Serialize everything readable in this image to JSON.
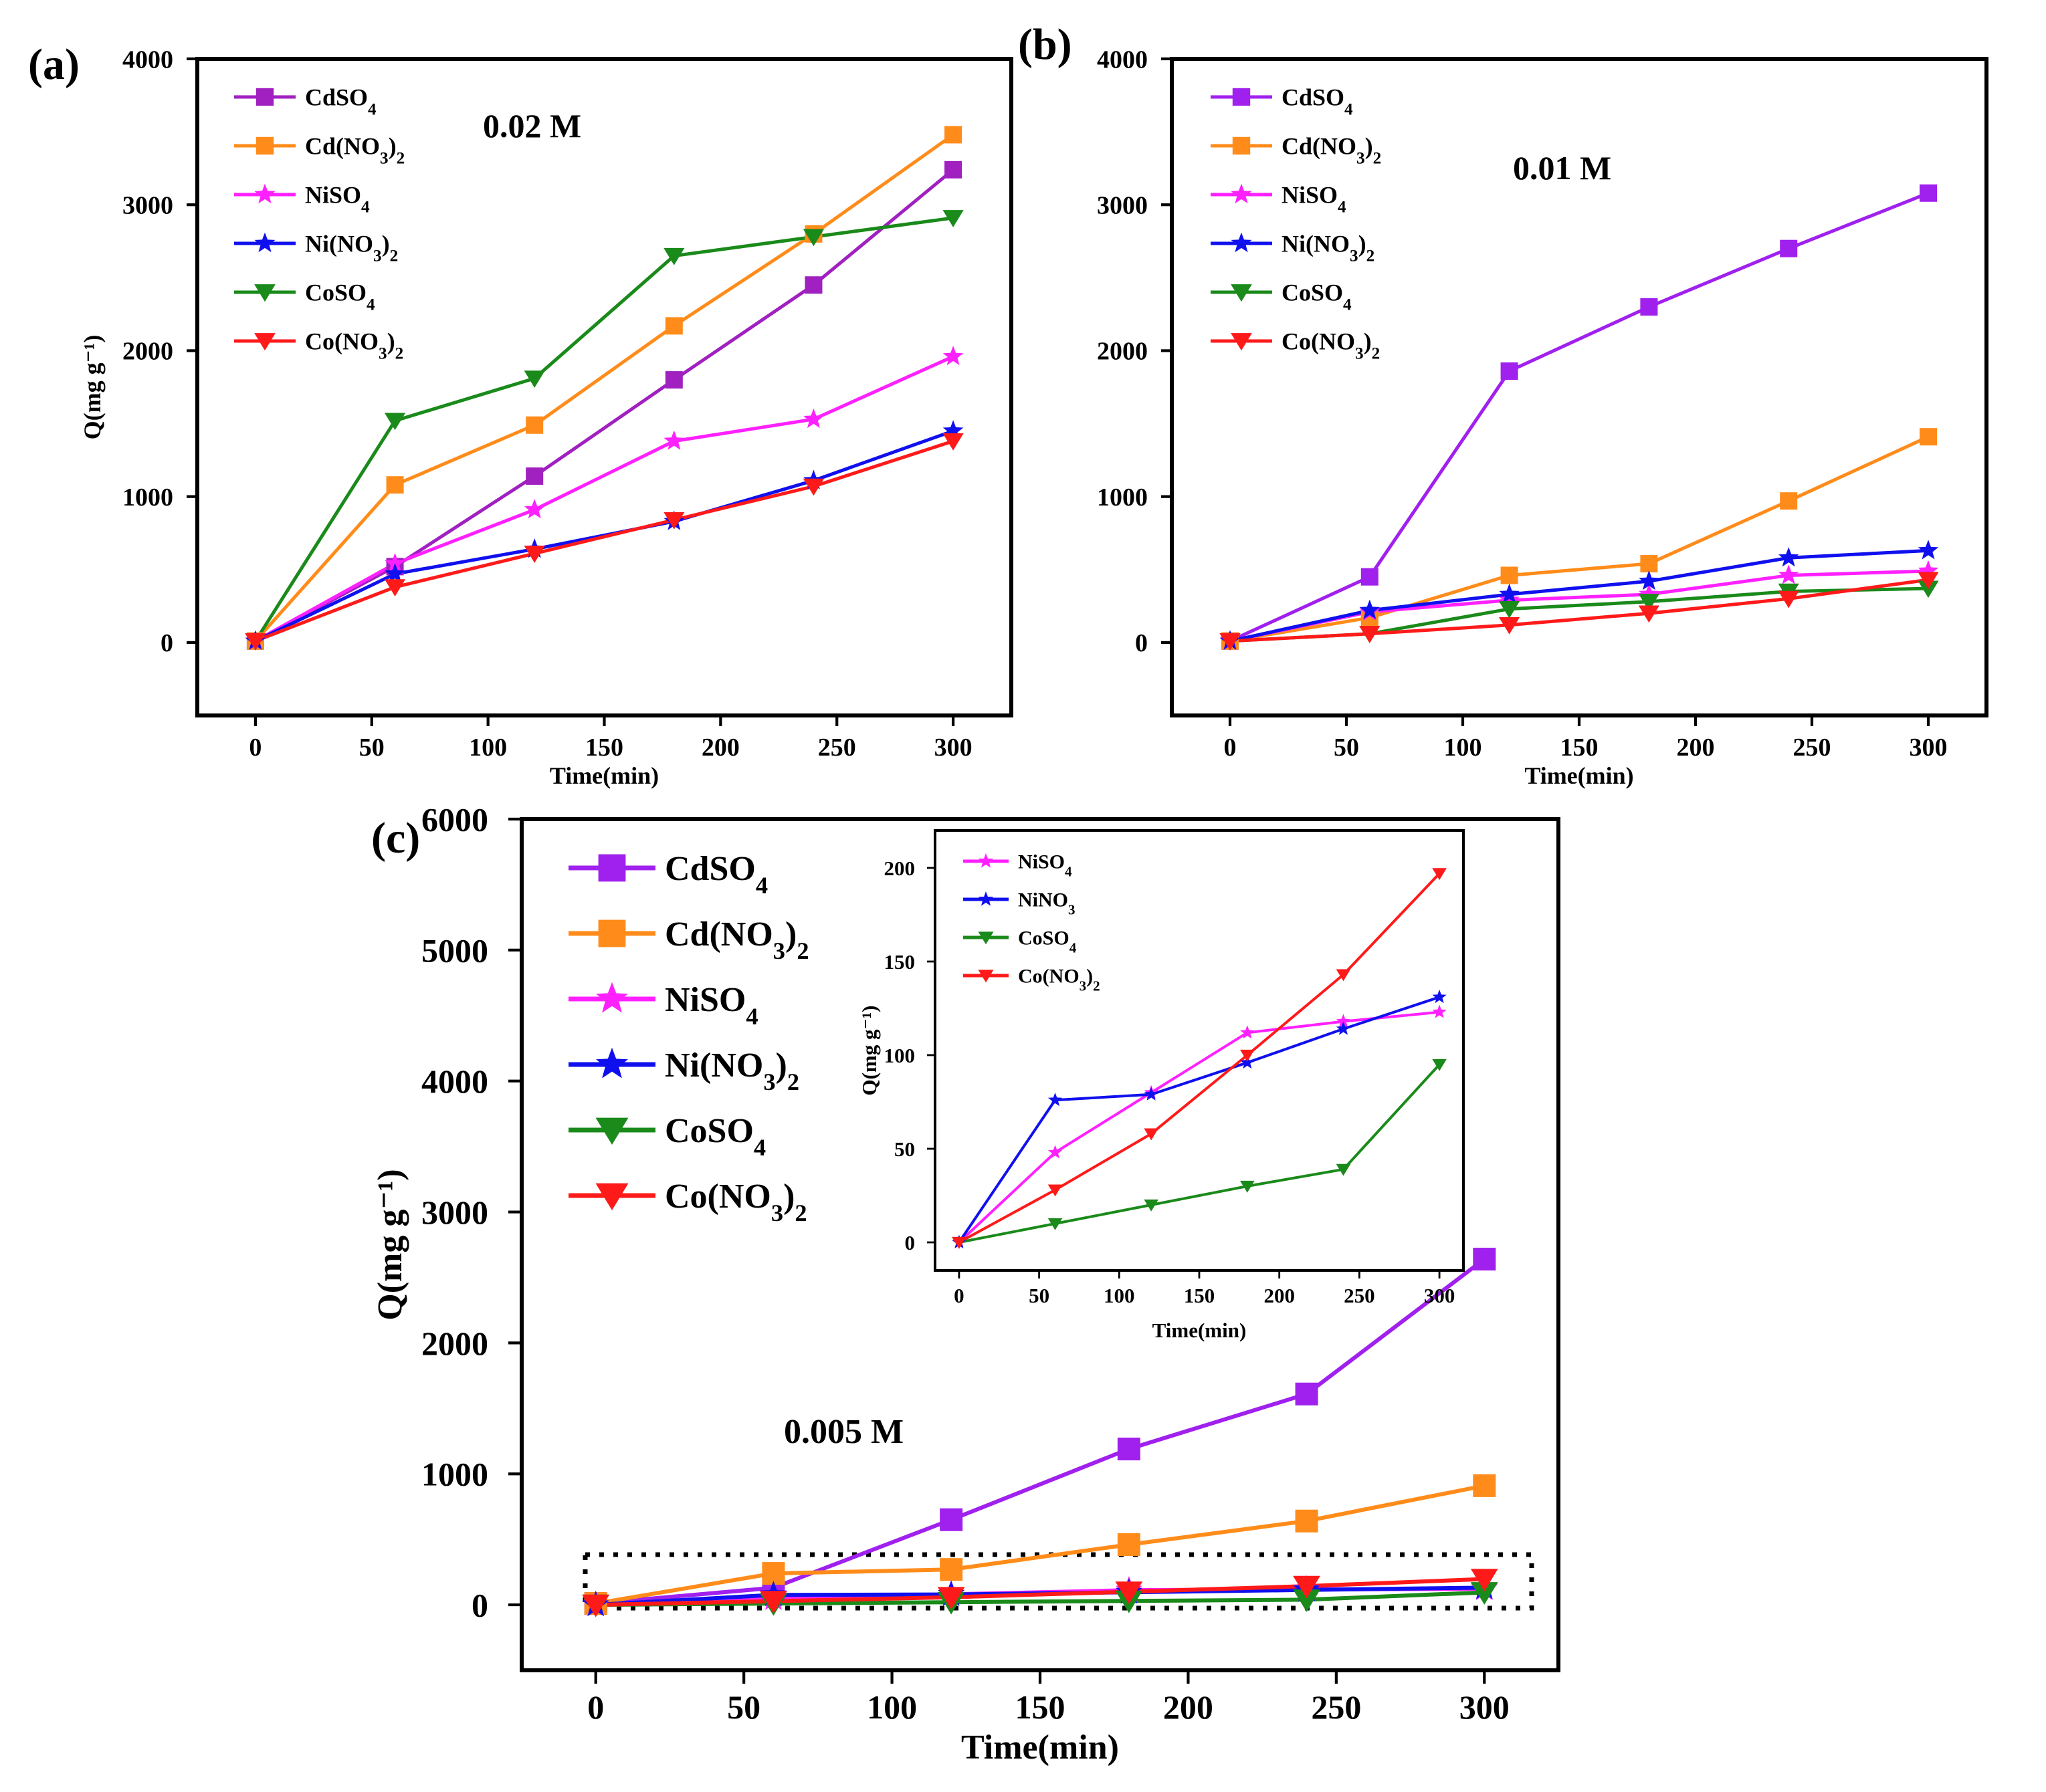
{
  "figure": {
    "panels": [
      {
        "label": "(a)",
        "annotation": "0.02 M",
        "xlabel": "Time(min)",
        "ylabel": "Q(mg g⁻¹)",
        "xticks": [
          "0",
          "50",
          "100",
          "150",
          "200",
          "250",
          "300"
        ],
        "yticks": [
          "0",
          "1000",
          "2000",
          "3000",
          "4000"
        ]
      },
      {
        "label": "(b)",
        "annotation": "0.01 M",
        "xlabel": "Time(min)",
        "ylabel": "",
        "xticks": [
          "0",
          "50",
          "100",
          "150",
          "200",
          "250",
          "300"
        ],
        "yticks": [
          "0",
          "1000",
          "2000",
          "3000",
          "4000"
        ]
      },
      {
        "label": "(c)",
        "annotation": "0.005 M",
        "xlabel": "Time(min)",
        "ylabel": "Q(mg g⁻¹)",
        "xticks": [
          "0",
          "50",
          "100",
          "150",
          "200",
          "250",
          "300"
        ],
        "yticks": [
          "0",
          "1000",
          "2000",
          "3000",
          "4000",
          "5000",
          "6000"
        ]
      },
      {
        "label": "",
        "annotation": "",
        "xlabel": "Time(min)",
        "ylabel": "Q(mg g⁻¹)",
        "xticks": [
          "0",
          "50",
          "100",
          "150",
          "200",
          "250",
          "300"
        ],
        "yticks": [
          "0",
          "50",
          "100",
          "150",
          "200"
        ]
      }
    ]
  },
  "chart_data": [
    {
      "id": "a",
      "type": "line",
      "title": "(a) 0.02 M",
      "xlabel": "Time(min)",
      "ylabel": "Q(mg g-1)",
      "xlim": [
        -25,
        325
      ],
      "ylim": [
        -500,
        4000
      ],
      "x": [
        0,
        60,
        120,
        180,
        240,
        300
      ],
      "legend_position": "top-left",
      "series": [
        {
          "name": "CdSO4",
          "sub": "4",
          "color": "#a020c0",
          "marker": "square",
          "values": [
            10,
            520,
            1140,
            1800,
            2450,
            3240
          ]
        },
        {
          "name": "Cd(NO3)2",
          "sub": "3)2",
          "color": "#ff8c1a",
          "marker": "square",
          "values": [
            10,
            1080,
            1490,
            2170,
            2800,
            3480
          ]
        },
        {
          "name": "NiSO4",
          "sub": "4",
          "color": "#ff20ff",
          "marker": "star",
          "values": [
            10,
            540,
            910,
            1380,
            1530,
            1960
          ]
        },
        {
          "name": "Ni(NO3)2",
          "sub": "3)2",
          "color": "#1010ee",
          "marker": "star",
          "values": [
            10,
            470,
            640,
            830,
            1110,
            1450
          ]
        },
        {
          "name": "CoSO4",
          "sub": "4",
          "color": "#1a8a1a",
          "marker": "triangle-down",
          "values": [
            10,
            1520,
            1810,
            2650,
            2780,
            2910
          ]
        },
        {
          "name": "Co(NO3)2",
          "sub": "3)2",
          "color": "#ff1a1a",
          "marker": "triangle-down",
          "values": [
            10,
            380,
            610,
            840,
            1070,
            1380
          ]
        }
      ]
    },
    {
      "id": "b",
      "type": "line",
      "title": "(b) 0.01 M",
      "xlabel": "Time(min)",
      "ylabel": "",
      "xlim": [
        -25,
        325
      ],
      "ylim": [
        -500,
        4000
      ],
      "x": [
        0,
        60,
        120,
        180,
        240,
        300
      ],
      "legend_position": "top-left",
      "series": [
        {
          "name": "CdSO4",
          "sub": "4",
          "color": "#a020ee",
          "marker": "square",
          "values": [
            10,
            450,
            1860,
            2300,
            2700,
            3080
          ]
        },
        {
          "name": "Cd(NO3)2",
          "sub": "3)2",
          "color": "#ff8c1a",
          "marker": "square",
          "values": [
            10,
            170,
            460,
            540,
            970,
            1410
          ]
        },
        {
          "name": "NiSO4",
          "sub": "4",
          "color": "#ff20ff",
          "marker": "star",
          "values": [
            10,
            210,
            290,
            330,
            460,
            490
          ]
        },
        {
          "name": "Ni(NO3)2",
          "sub": "3)2",
          "color": "#1010ee",
          "marker": "star",
          "values": [
            10,
            220,
            330,
            420,
            580,
            630
          ]
        },
        {
          "name": "CoSO4",
          "sub": "4",
          "color": "#1a8a1a",
          "marker": "triangle-down",
          "values": [
            10,
            60,
            230,
            280,
            350,
            370
          ]
        },
        {
          "name": "Co(NO3)2",
          "sub": "3)2",
          "color": "#ff1a1a",
          "marker": "triangle-down",
          "values": [
            10,
            60,
            120,
            200,
            300,
            430
          ]
        }
      ]
    },
    {
      "id": "c",
      "type": "line",
      "title": "(c) 0.005 M",
      "xlabel": "Time(min)",
      "ylabel": "Q(mg g-1)",
      "xlim": [
        -25,
        325
      ],
      "ylim": [
        -500,
        6000
      ],
      "x": [
        0,
        60,
        120,
        180,
        240,
        300
      ],
      "legend_position": "top-left",
      "series": [
        {
          "name": "CdSO4",
          "sub": "4",
          "color": "#a020ee",
          "marker": "square",
          "values": [
            10,
            130,
            650,
            1190,
            1610,
            2640
          ]
        },
        {
          "name": "Cd(NO3)2",
          "sub": "3)2",
          "color": "#ff8c1a",
          "marker": "square",
          "values": [
            10,
            240,
            270,
            460,
            640,
            910
          ]
        },
        {
          "name": "NiSO4",
          "sub": "4",
          "color": "#ff20ff",
          "marker": "star",
          "values": [
            0,
            48,
            80,
            112,
            118,
            123
          ]
        },
        {
          "name": "Ni(NO3)2",
          "sub": "3)2",
          "color": "#1010ee",
          "marker": "star",
          "values": [
            0,
            76,
            79,
            96,
            114,
            131
          ]
        },
        {
          "name": "CoSO4",
          "sub": "4",
          "color": "#1a8a1a",
          "marker": "triangle-down",
          "values": [
            0,
            10,
            20,
            30,
            39,
            95
          ]
        },
        {
          "name": "Co(NO3)2",
          "sub": "3)2",
          "color": "#ff1a1a",
          "marker": "triangle-down",
          "values": [
            0,
            28,
            58,
            100,
            143,
            197
          ]
        }
      ]
    },
    {
      "id": "c-inset",
      "type": "line",
      "title": "",
      "xlabel": "Time(min)",
      "ylabel": "Q(mg g-1)",
      "xlim": [
        -15,
        315
      ],
      "ylim": [
        -15,
        220
      ],
      "x": [
        0,
        60,
        120,
        180,
        240,
        300
      ],
      "legend_position": "top-left",
      "series": [
        {
          "name": "NiSO4",
          "sub": "4",
          "color": "#ff20ff",
          "marker": "star",
          "values": [
            0,
            48,
            80,
            112,
            118,
            123
          ]
        },
        {
          "name": "NiNO3",
          "sub": "3",
          "color": "#1010ee",
          "marker": "star",
          "values": [
            0,
            76,
            79,
            96,
            114,
            131
          ]
        },
        {
          "name": "CoSO4",
          "sub": "4",
          "color": "#1a8a1a",
          "marker": "triangle-down",
          "values": [
            0,
            10,
            20,
            30,
            39,
            95
          ]
        },
        {
          "name": "Co(NO3)2",
          "sub": "3)2",
          "color": "#ff1a1a",
          "marker": "triangle-down",
          "values": [
            0,
            28,
            58,
            100,
            143,
            197
          ]
        }
      ]
    }
  ]
}
